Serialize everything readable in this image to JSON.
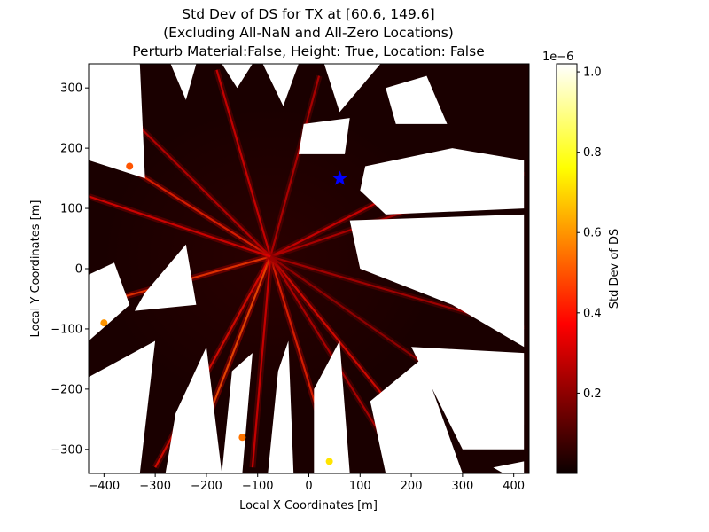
{
  "chart_data": {
    "type": "heatmap",
    "title_lines": [
      "Std Dev of DS for TX at [60.6, 149.6]",
      "(Excluding All-NaN and All-Zero Locations)",
      "Perturb Material:False, Height: True, Location: False"
    ],
    "xlabel": "Local X Coordinates [m]",
    "ylabel": "Local Y Coordinates [m]",
    "xlim": [
      -430,
      430
    ],
    "ylim": [
      -340,
      340
    ],
    "x_ticks": [
      -400,
      -300,
      -200,
      -100,
      0,
      100,
      200,
      300,
      400
    ],
    "y_ticks": [
      -300,
      -200,
      -100,
      0,
      100,
      200,
      300
    ],
    "grid": false,
    "colormap": "hot",
    "colorbar": {
      "label": "Std Dev of DS",
      "offset_text": "1e−6",
      "min": 0.0,
      "max": 1.02,
      "ticks": [
        0.2,
        0.4,
        0.6,
        0.8,
        1.0
      ],
      "tick_labels": [
        "0.2",
        "0.4",
        "0.6",
        "0.8",
        "1.0"
      ]
    },
    "transmitter": {
      "x": 60.6,
      "y": 149.6,
      "marker": "star",
      "color": "#0000ff"
    },
    "center": {
      "x": -75,
      "y": 20
    },
    "white_regions": [
      [
        [
          -430,
          340
        ],
        [
          -430,
          180
        ],
        [
          -320,
          150
        ],
        [
          -330,
          340
        ]
      ],
      [
        [
          -270,
          340
        ],
        [
          -220,
          340
        ],
        [
          -240,
          280
        ]
      ],
      [
        [
          -170,
          340
        ],
        [
          -110,
          340
        ],
        [
          -140,
          300
        ]
      ],
      [
        [
          -90,
          340
        ],
        [
          -20,
          340
        ],
        [
          -50,
          270
        ]
      ],
      [
        [
          30,
          340
        ],
        [
          140,
          340
        ],
        [
          60,
          260
        ]
      ],
      [
        [
          -10,
          240
        ],
        [
          80,
          250
        ],
        [
          70,
          190
        ],
        [
          -20,
          190
        ]
      ],
      [
        [
          150,
          300
        ],
        [
          230,
          320
        ],
        [
          270,
          240
        ],
        [
          170,
          240
        ]
      ],
      [
        [
          110,
          170
        ],
        [
          280,
          200
        ],
        [
          420,
          180
        ],
        [
          420,
          100
        ],
        [
          150,
          90
        ],
        [
          100,
          130
        ]
      ],
      [
        [
          80,
          80
        ],
        [
          420,
          90
        ],
        [
          420,
          -130
        ],
        [
          280,
          -60
        ],
        [
          100,
          0
        ]
      ],
      [
        [
          -430,
          -10
        ],
        [
          -380,
          10
        ],
        [
          -350,
          -60
        ],
        [
          -430,
          -120
        ]
      ],
      [
        [
          -340,
          -70
        ],
        [
          -220,
          -60
        ],
        [
          -240,
          40
        ],
        [
          -320,
          -40
        ]
      ],
      [
        [
          -430,
          -180
        ],
        [
          -300,
          -120
        ],
        [
          -330,
          -340
        ],
        [
          -430,
          -340
        ]
      ],
      [
        [
          -260,
          -240
        ],
        [
          -200,
          -130
        ],
        [
          -170,
          -340
        ],
        [
          -280,
          -340
        ]
      ],
      [
        [
          -150,
          -170
        ],
        [
          -110,
          -140
        ],
        [
          -130,
          -340
        ],
        [
          -170,
          -340
        ]
      ],
      [
        [
          -60,
          -170
        ],
        [
          -40,
          -120
        ],
        [
          -30,
          -340
        ],
        [
          -80,
          -340
        ]
      ],
      [
        [
          10,
          -200
        ],
        [
          60,
          -120
        ],
        [
          80,
          -340
        ],
        [
          10,
          -340
        ]
      ],
      [
        [
          120,
          -220
        ],
        [
          220,
          -150
        ],
        [
          300,
          -340
        ],
        [
          150,
          -340
        ]
      ],
      [
        [
          200,
          -130
        ],
        [
          420,
          -140
        ],
        [
          420,
          -300
        ],
        [
          300,
          -300
        ]
      ],
      [
        [
          360,
          -330
        ],
        [
          420,
          -320
        ],
        [
          420,
          -340
        ],
        [
          380,
          -340
        ]
      ]
    ],
    "bright_streaks": [
      [
        [
          -75,
          20
        ],
        [
          -430,
          210
        ],
        0.45
      ],
      [
        [
          -75,
          20
        ],
        [
          -420,
          -60
        ],
        0.5
      ],
      [
        [
          -75,
          20
        ],
        [
          -300,
          -330
        ],
        0.4
      ],
      [
        [
          -75,
          20
        ],
        [
          -230,
          -320
        ],
        0.55
      ],
      [
        [
          -75,
          20
        ],
        [
          -180,
          330
        ],
        0.35
      ],
      [
        [
          -75,
          20
        ],
        [
          20,
          320
        ],
        0.3
      ],
      [
        [
          -75,
          20
        ],
        [
          320,
          190
        ],
        0.35
      ],
      [
        [
          -75,
          20
        ],
        [
          420,
          160
        ],
        0.3
      ],
      [
        [
          -75,
          20
        ],
        [
          420,
          -100
        ],
        0.28
      ],
      [
        [
          -75,
          20
        ],
        [
          240,
          -310
        ],
        0.4
      ],
      [
        [
          -75,
          20
        ],
        [
          50,
          -330
        ],
        0.45
      ],
      [
        [
          -75,
          20
        ],
        [
          -110,
          -330
        ],
        0.35
      ],
      [
        [
          -75,
          20
        ],
        [
          -360,
          260
        ],
        0.32
      ],
      [
        [
          -75,
          20
        ],
        [
          180,
          -330
        ],
        0.3
      ],
      [
        [
          -75,
          20
        ],
        [
          -430,
          120
        ],
        0.38
      ],
      [
        [
          -75,
          20
        ],
        [
          380,
          -250
        ],
        0.25
      ]
    ],
    "hotspots": [
      {
        "x": 40,
        "y": -320,
        "value": 0.72
      },
      {
        "x": -130,
        "y": -280,
        "value": 0.55
      },
      {
        "x": -400,
        "y": -90,
        "value": 0.6
      },
      {
        "x": -350,
        "y": 170,
        "value": 0.5
      }
    ]
  }
}
